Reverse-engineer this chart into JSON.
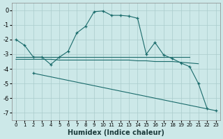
{
  "xlabel": "Humidex (Indice chaleur)",
  "background_color": "#cce8e8",
  "grid_color": "#aacccc",
  "line_color": "#1a6b6b",
  "xlim": [
    -0.5,
    23.5
  ],
  "ylim": [
    -7.5,
    0.5
  ],
  "yticks": [
    0,
    -1,
    -2,
    -3,
    -4,
    -5,
    -6,
    -7
  ],
  "xticks": [
    0,
    1,
    2,
    3,
    4,
    5,
    6,
    7,
    8,
    9,
    10,
    11,
    12,
    13,
    14,
    15,
    16,
    17,
    18,
    19,
    20,
    21,
    22,
    23
  ],
  "line1_x": [
    0,
    1,
    2,
    3,
    4,
    5,
    6,
    7,
    8,
    9,
    10,
    11,
    12,
    13,
    14,
    15,
    16,
    17,
    18,
    19,
    20,
    21,
    22
  ],
  "line1_y": [
    -2.0,
    -2.4,
    -3.2,
    -3.2,
    -3.7,
    -3.2,
    -2.8,
    -1.55,
    -1.1,
    -0.1,
    -0.05,
    -0.35,
    -0.35,
    -0.4,
    -0.55,
    -3.0,
    -2.2,
    -3.05,
    -3.3,
    -3.6,
    -3.85,
    -5.0,
    -6.7
  ],
  "line2_x": [
    0,
    1,
    2,
    3,
    4,
    5,
    6,
    7,
    8,
    9,
    10,
    11,
    12,
    13,
    14,
    15,
    16,
    17,
    18,
    19,
    20
  ],
  "line2_y": [
    -3.2,
    -3.2,
    -3.2,
    -3.2,
    -3.2,
    -3.2,
    -3.2,
    -3.2,
    -3.2,
    -3.2,
    -3.2,
    -3.2,
    -3.2,
    -3.2,
    -3.2,
    -3.2,
    -3.2,
    -3.2,
    -3.2,
    -3.2,
    -3.2
  ],
  "line3_x": [
    0,
    1,
    2,
    3,
    4,
    5,
    6,
    7,
    8,
    9,
    10,
    11,
    12,
    13,
    14,
    15,
    16,
    17,
    18,
    19,
    20,
    21
  ],
  "line3_y": [
    -3.35,
    -3.35,
    -3.35,
    -3.35,
    -3.35,
    -3.4,
    -3.4,
    -3.4,
    -3.4,
    -3.4,
    -3.4,
    -3.4,
    -3.4,
    -3.4,
    -3.45,
    -3.45,
    -3.5,
    -3.5,
    -3.5,
    -3.55,
    -3.6,
    -3.65
  ],
  "line4_x": [
    2,
    23
  ],
  "line4_y": [
    -4.3,
    -6.85
  ],
  "linewidth": 0.8,
  "marker_size": 3.5
}
